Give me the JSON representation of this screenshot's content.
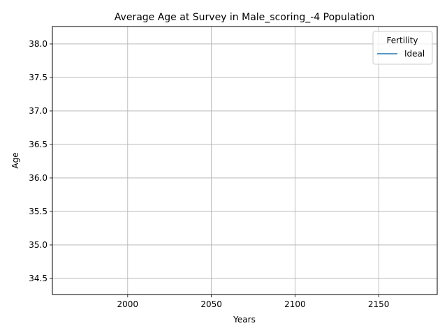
{
  "chart_data": {
    "type": "line",
    "title": "Average Age at Survey in Male_scoring_-4 Population",
    "xlabel": "Years",
    "ylabel": "Age",
    "xlim": [
      1955,
      2185
    ],
    "ylim": [
      34.26,
      38.26
    ],
    "xticks": [
      2000,
      2050,
      2100,
      2150
    ],
    "xtick_labels": [
      "2000",
      "2050",
      "2100",
      "2150"
    ],
    "yticks": [
      34.5,
      35.0,
      35.5,
      36.0,
      36.5,
      37.0,
      37.5,
      38.0
    ],
    "ytick_labels": [
      "34.5",
      "35.0",
      "35.5",
      "36.0",
      "36.5",
      "37.0",
      "37.5",
      "38.0"
    ],
    "grid": true,
    "legend": {
      "title": "Fertility",
      "placement": "top-right",
      "entries": [
        "Ideal"
      ]
    },
    "series": [
      {
        "name": "Ideal",
        "color": "#1f77b4",
        "x": [],
        "y": []
      }
    ]
  }
}
